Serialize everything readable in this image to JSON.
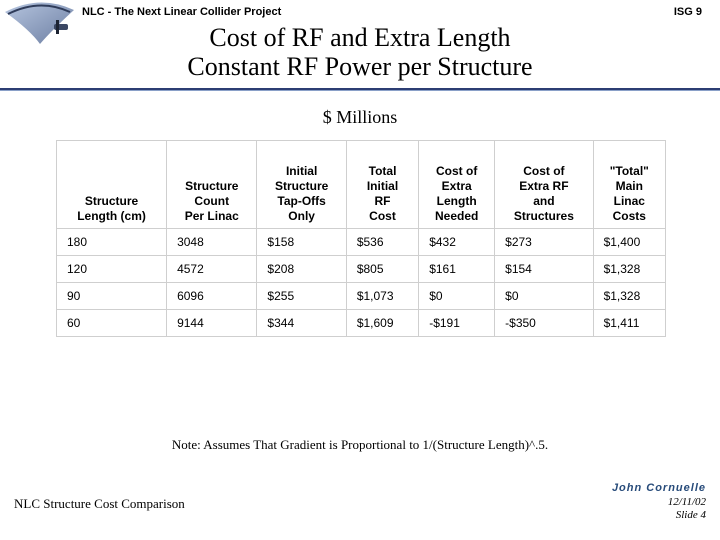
{
  "header": {
    "project": "NLC - The Next Linear Collider Project",
    "tag": "ISG 9"
  },
  "title": {
    "line1": "Cost of RF and Extra Length",
    "line2": "Constant RF Power per Structure"
  },
  "subtitle": "$ Millions",
  "table": {
    "columns": [
      "Structure\nLength (cm)",
      "Structure\nCount\nPer Linac",
      "Initial\nStructure\nTap-Offs\nOnly",
      "Total\nInitial\nRF\nCost",
      "Cost of\nExtra\nLength\nNeeded",
      "Cost of\nExtra RF\nand\nStructures",
      "\"Total\"\nMain\nLinac\nCosts"
    ],
    "rows": [
      [
        "180",
        "3048",
        "$158",
        "$536",
        "$432",
        "$273",
        "$1,400"
      ],
      [
        "120",
        "4572",
        "$208",
        "$805",
        "$161",
        "$154",
        "$1,328"
      ],
      [
        "90",
        "6096",
        "$255",
        "$1,073",
        "$0",
        "$0",
        "$1,328"
      ],
      [
        "60",
        "9144",
        "$344",
        "$1,609",
        "-$191",
        "-$350",
        "$1,411"
      ]
    ]
  },
  "note": "Note:  Assumes That Gradient is Proportional to 1/(Structure Length)^.5.",
  "footer": {
    "left": "NLC Structure Cost Comparison",
    "author": "John Cornuelle",
    "date": "12/11/02",
    "slide": "Slide 4"
  },
  "style": {
    "accent": "#2c3d73",
    "grid": "#cfcfcf"
  }
}
